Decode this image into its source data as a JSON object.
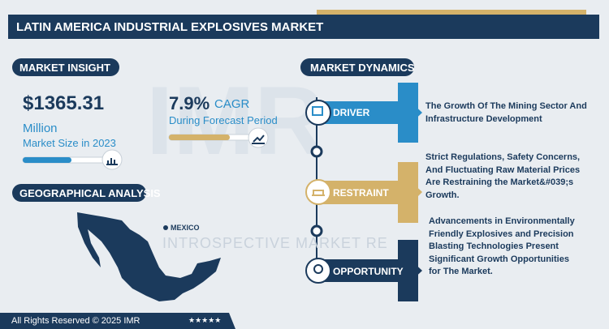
{
  "header": {
    "title": "LATIN AMERICA INDUSTRIAL EXPLOSIVES MARKET"
  },
  "watermark": "INTROSPECTIVE MARKET RE",
  "market_insight": {
    "heading": "MARKET INSIGHT",
    "size_value": "$1365.31",
    "size_unit": "Million",
    "size_caption": "Market Size in 2023",
    "cagr_value": "7.9%",
    "cagr_label": "CAGR",
    "cagr_caption": "During Forecast Period"
  },
  "geographical_analysis": {
    "heading": "GEOGRAPHICAL ANALYSIS",
    "region": "MEXICO"
  },
  "market_dynamics": {
    "heading": "MARKET DYNAMICS",
    "items": [
      {
        "label": "DRIVER",
        "text": "The Growth Of The Mining Sector And Infrastructure Development"
      },
      {
        "label": "RESTRAINT",
        "text": "Strict Regulations, Safety Concerns, And Fluctuating Raw Material Prices Are Restraining the Market&#039;s Growth."
      },
      {
        "label": "OPPORTUNITY",
        "text": "Advancements in Environmentally Friendly Explosives and Precision Blasting Technologies Present Significant Growth Opportunities for The Market."
      }
    ]
  },
  "footer": {
    "copyright": "All Rights Reserved © 2025 IMR",
    "rating": "★★★★★"
  }
}
